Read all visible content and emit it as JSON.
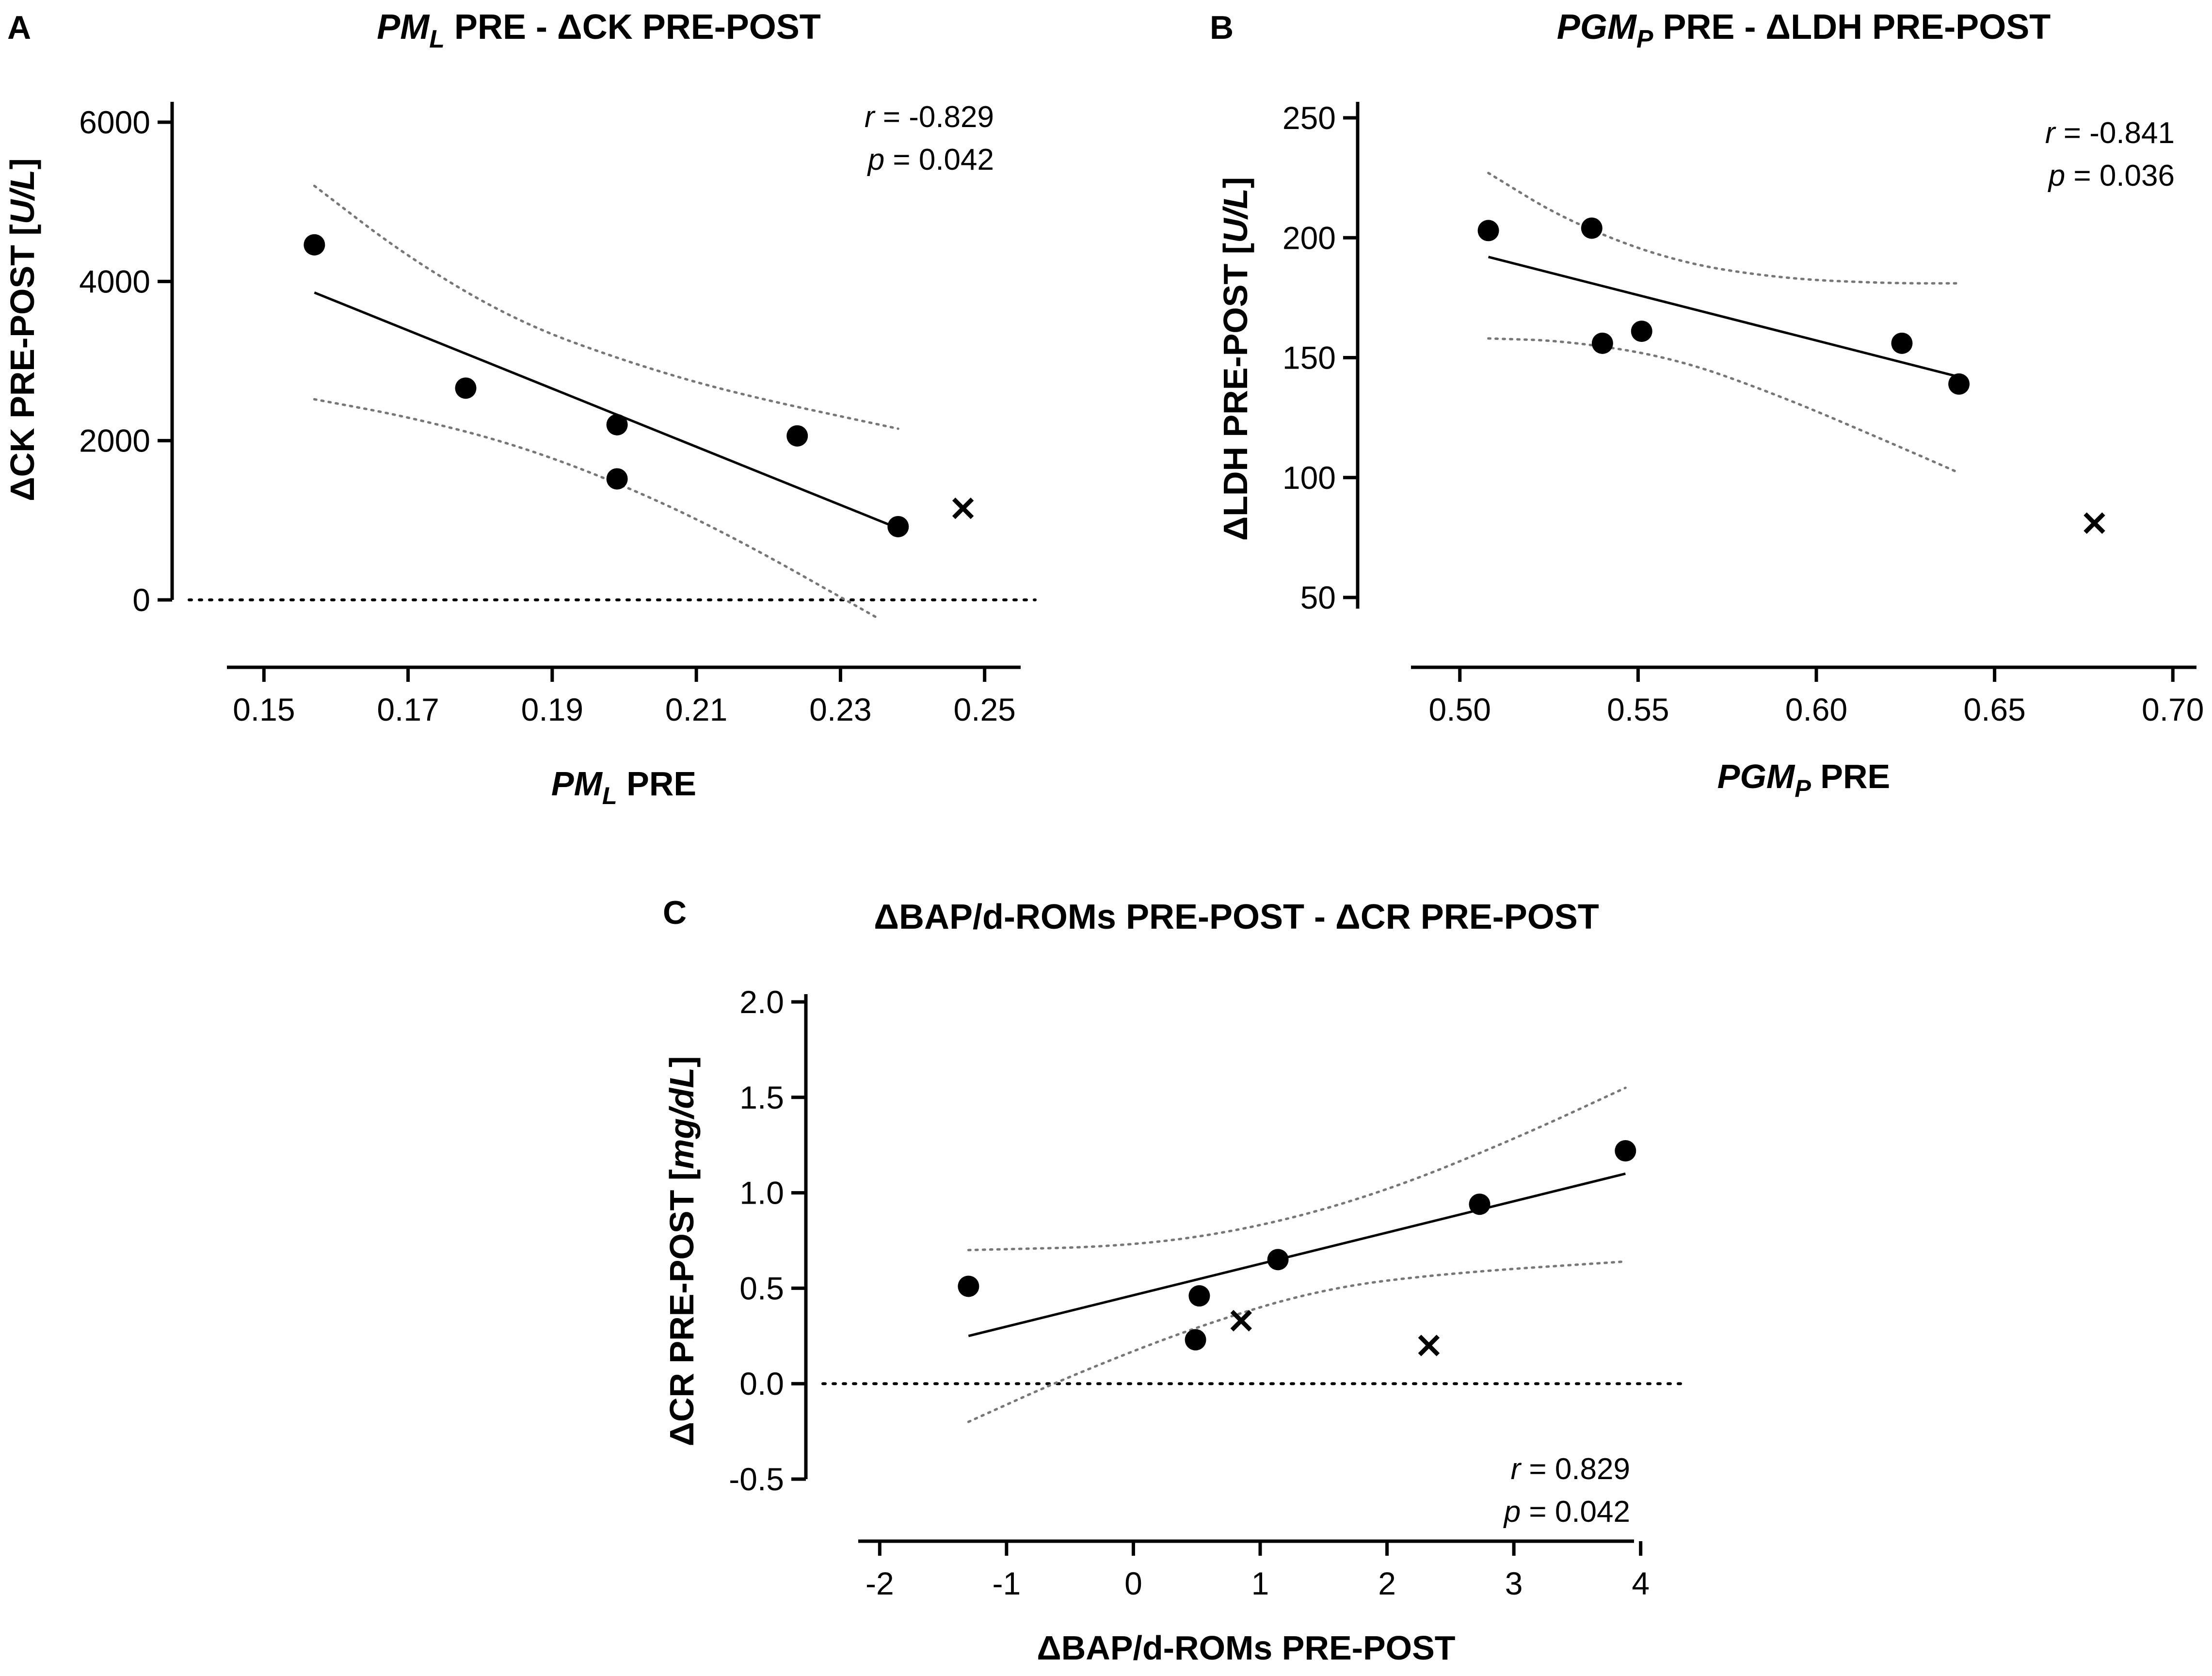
{
  "chart_data": [
    {
      "panel": "A",
      "type": "scatter",
      "title": {
        "parts": [
          {
            "text": "PM",
            "italic": true
          },
          {
            "text": "L",
            "italic": true,
            "sub": true
          },
          {
            "text": " PRE - ΔCK PRE-POST",
            "italic": false
          }
        ]
      },
      "xlabel": {
        "parts": [
          {
            "text": "PM",
            "italic": true
          },
          {
            "text": "L",
            "italic": true,
            "sub": true
          },
          {
            "text": " PRE",
            "italic": false
          }
        ]
      },
      "ylabel": {
        "parts": [
          {
            "text": "ΔCK PRE-POST [",
            "italic": false
          },
          {
            "text": "U/L",
            "italic": true
          },
          {
            "text": "]",
            "italic": false
          }
        ]
      },
      "xlim": [
        0.145,
        0.255
      ],
      "ylim": [
        0,
        6000
      ],
      "xticks": [
        0.15,
        0.17,
        0.19,
        0.21,
        0.23,
        0.25
      ],
      "xtick_labels": [
        "0.15",
        "0.17",
        "0.19",
        "0.21",
        "0.23",
        "0.25"
      ],
      "yticks": [
        0,
        2000,
        4000,
        6000
      ],
      "ytick_labels": [
        "0",
        "2000",
        "4000",
        "6000"
      ],
      "zero_line": true,
      "points": [
        {
          "x": 0.157,
          "y": 4460
        },
        {
          "x": 0.178,
          "y": 2660
        },
        {
          "x": 0.199,
          "y": 2200
        },
        {
          "x": 0.199,
          "y": 1520
        },
        {
          "x": 0.224,
          "y": 2060
        },
        {
          "x": 0.238,
          "y": 920
        }
      ],
      "excluded_points": [
        {
          "x": 0.247,
          "y": 1150
        }
      ],
      "regression": {
        "x": [
          0.157,
          0.238
        ],
        "y": [
          3860,
          900
        ]
      },
      "ci_upper": {
        "x": [
          0.157,
          0.17,
          0.185,
          0.2,
          0.215,
          0.238
        ],
        "y": [
          5200,
          4300,
          3500,
          3000,
          2600,
          2150
        ]
      },
      "ci_lower": {
        "x": [
          0.157,
          0.17,
          0.185,
          0.2,
          0.215,
          0.235
        ],
        "y": [
          2520,
          2300,
          1950,
          1440,
          800,
          -220
        ]
      },
      "stats": {
        "r_label": "r",
        "r_value": " = -0.829",
        "p_label": "p",
        "p_value": " = 0.042"
      }
    },
    {
      "panel": "B",
      "type": "scatter",
      "title": {
        "parts": [
          {
            "text": "PGM",
            "italic": true
          },
          {
            "text": "P",
            "italic": true,
            "sub": true
          },
          {
            "text": " PRE - ΔLDH PRE-POST",
            "italic": false
          }
        ]
      },
      "xlabel": {
        "parts": [
          {
            "text": "PGM",
            "italic": true
          },
          {
            "text": "P",
            "italic": true,
            "sub": true
          },
          {
            "text": " PRE",
            "italic": false
          }
        ]
      },
      "ylabel": {
        "parts": [
          {
            "text": "ΔLDH PRE-POST [",
            "italic": false
          },
          {
            "text": "U/L",
            "italic": true
          },
          {
            "text": "]",
            "italic": false
          }
        ]
      },
      "xlim": [
        0.495,
        0.705
      ],
      "ylim": [
        50,
        250
      ],
      "xticks": [
        0.5,
        0.55,
        0.6,
        0.65,
        0.7
      ],
      "xtick_labels": [
        "0.50",
        "0.55",
        "0.60",
        "0.65",
        "0.70"
      ],
      "yticks": [
        50,
        100,
        150,
        200,
        250
      ],
      "ytick_labels": [
        "50",
        "100",
        "150",
        "200",
        "250"
      ],
      "zero_line": false,
      "points": [
        {
          "x": 0.508,
          "y": 203
        },
        {
          "x": 0.537,
          "y": 204
        },
        {
          "x": 0.54,
          "y": 156
        },
        {
          "x": 0.551,
          "y": 161
        },
        {
          "x": 0.624,
          "y": 156
        },
        {
          "x": 0.64,
          "y": 139
        }
      ],
      "excluded_points": [
        {
          "x": 0.678,
          "y": 81
        }
      ],
      "regression": {
        "x": [
          0.508,
          0.64
        ],
        "y": [
          192,
          142
        ]
      },
      "ci_upper": {
        "x": [
          0.508,
          0.53,
          0.56,
          0.59,
          0.62,
          0.64
        ],
        "y": [
          227,
          207,
          190,
          183,
          181,
          181
        ]
      },
      "ci_lower": {
        "x": [
          0.508,
          0.53,
          0.56,
          0.59,
          0.62,
          0.64
        ],
        "y": [
          158,
          157,
          150,
          134,
          115,
          102
        ]
      },
      "stats": {
        "r_label": "r",
        "r_value": " = -0.841",
        "p_label": "p",
        "p_value": " = 0.036"
      }
    },
    {
      "panel": "C",
      "type": "scatter",
      "title": {
        "parts": [
          {
            "text": "ΔBAP/d-ROMs PRE-POST - ΔCR PRE-POST",
            "italic": false
          }
        ]
      },
      "xlabel": {
        "parts": [
          {
            "text": "ΔBAP/d-ROMs PRE-POST",
            "italic": false
          }
        ]
      },
      "ylabel": {
        "parts": [
          {
            "text": "ΔCR PRE-POST [",
            "italic": false
          },
          {
            "text": "mg/dL",
            "italic": true
          },
          {
            "text": "]",
            "italic": false
          }
        ]
      },
      "xlim": [
        -2.2,
        4.2
      ],
      "ylim": [
        -0.5,
        2.0
      ],
      "xticks": [
        -2,
        -1,
        0,
        1,
        2,
        3,
        4
      ],
      "xtick_labels": [
        "-2",
        "-1",
        "0",
        "1",
        "2",
        "3",
        "4"
      ],
      "yticks": [
        -0.5,
        0,
        0.5,
        1.0,
        1.5,
        2.0
      ],
      "ytick_labels": [
        "-0.5",
        "0.0",
        "0.5",
        "1.0",
        "1.5",
        "2.0"
      ],
      "zero_line": true,
      "points": [
        {
          "x": -1.3,
          "y": 0.51
        },
        {
          "x": 0.52,
          "y": 0.46
        },
        {
          "x": 0.49,
          "y": 0.23
        },
        {
          "x": 1.14,
          "y": 0.65
        },
        {
          "x": 2.73,
          "y": 0.94
        },
        {
          "x": 3.88,
          "y": 1.22
        }
      ],
      "excluded_points": [
        {
          "x": 0.85,
          "y": 0.33
        },
        {
          "x": 2.33,
          "y": 0.2
        }
      ],
      "regression": {
        "x": [
          -1.3,
          3.88
        ],
        "y": [
          0.25,
          1.1
        ]
      },
      "ci_upper": {
        "x": [
          -1.3,
          0,
          1,
          2,
          3,
          3.88
        ],
        "y": [
          0.7,
          0.72,
          0.82,
          1.01,
          1.28,
          1.55
        ]
      },
      "ci_lower": {
        "x": [
          -1.3,
          -0.5,
          0.5,
          1.5,
          2.5,
          3.88
        ],
        "y": [
          -0.2,
          0.04,
          0.3,
          0.5,
          0.58,
          0.64
        ]
      },
      "stats": {
        "r_label": "r",
        "r_value": " = 0.829",
        "p_label": "p",
        "p_value": " = 0.042"
      }
    }
  ]
}
